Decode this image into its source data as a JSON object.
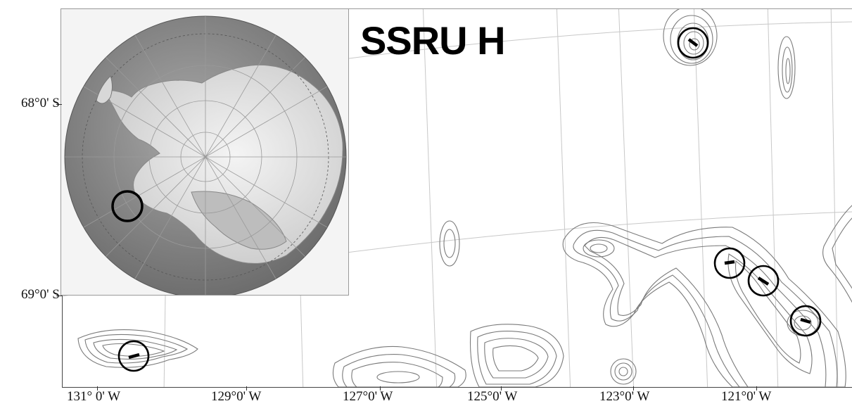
{
  "map": {
    "title": "SSRU H",
    "lat_labels": [
      "68°0' S",
      "69°0' S"
    ],
    "lon_labels": [
      "131° 0' W",
      "129°0' W",
      "127°0' W",
      "125°0' W",
      "123°0' W",
      "121°0' W"
    ]
  },
  "inset": {
    "description_icon": "antarctica-overview-globe-icon"
  },
  "colors": {
    "contour": "#7a7a7a",
    "marker": "#000000",
    "graticule": "#c8c8c8",
    "ocean": "#8c8c8c",
    "land": "#e6e6e6"
  }
}
